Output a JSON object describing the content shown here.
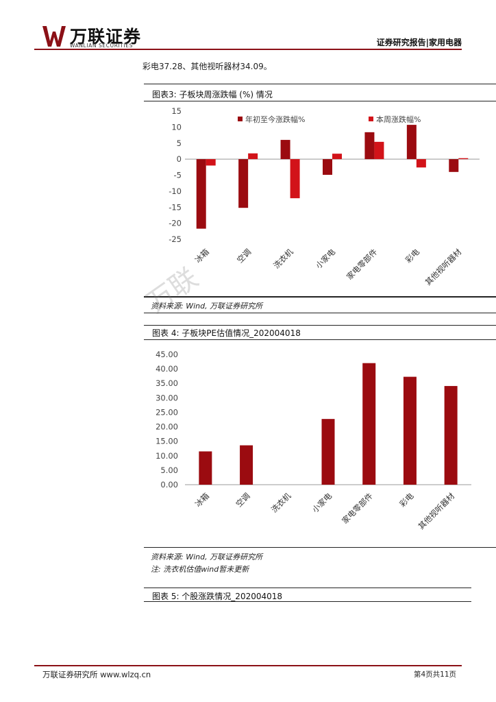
{
  "header": {
    "logo_cn": "万联证券",
    "logo_en": "WANLIAN SECURITIES",
    "right_label": "证券研究报告|家用电器"
  },
  "intro_text": "彩电37.28、其他视听器材34.09。",
  "watermark": "万联",
  "figure3": {
    "caption": "图表3: 子板块周涨跌幅 (%) 情况",
    "source": "资料来源: Wind, 万联证券研究所"
  },
  "figure4": {
    "caption": "图表 4: 子板块PE估值情况_202004018",
    "source": "资料来源: Wind, 万联证券研究所",
    "note": "注: 洗衣机估值wind暂未更新"
  },
  "figure5": {
    "caption": "图表 5: 个股涨跌情况_202004018"
  },
  "footer": {
    "left": "万联证券研究所 www.wlzq.cn",
    "right": "第4页共11页"
  },
  "colors": {
    "dark_red": "#9b0b10",
    "red": "#d21319",
    "brand_line": "#8b1016"
  },
  "chart_data": [
    {
      "type": "bar",
      "categories": [
        "冰箱",
        "空调",
        "洗衣机",
        "小家电",
        "家电零部件",
        "彩电",
        "其他视听器材"
      ],
      "series": [
        {
          "name": "年初至今涨跌幅%",
          "values": [
            -21.7,
            -15.2,
            6.0,
            -4.9,
            8.4,
            10.7,
            -4.0
          ]
        },
        {
          "name": "本周涨跌幅%",
          "values": [
            -2.0,
            1.8,
            -12.2,
            1.7,
            5.4,
            -2.6,
            0.3
          ]
        }
      ],
      "ylim": [
        -25,
        15
      ],
      "yticks": [
        15,
        10,
        5,
        0,
        -5,
        -10,
        -15,
        -20,
        -25
      ],
      "legend": "top"
    },
    {
      "type": "bar",
      "categories": [
        "冰箱",
        "空调",
        "洗衣机",
        "小家电",
        "家电零部件",
        "彩电",
        "其他视听器材"
      ],
      "series": [
        {
          "values": [
            11.5,
            13.6,
            0,
            22.7,
            42.0,
            37.28,
            34.09
          ]
        }
      ],
      "ylim": [
        0,
        45
      ],
      "yticks": [
        "45.00",
        "40.00",
        "35.00",
        "30.00",
        "25.00",
        "20.00",
        "15.00",
        "10.00",
        "5.00",
        "0.00"
      ]
    }
  ]
}
